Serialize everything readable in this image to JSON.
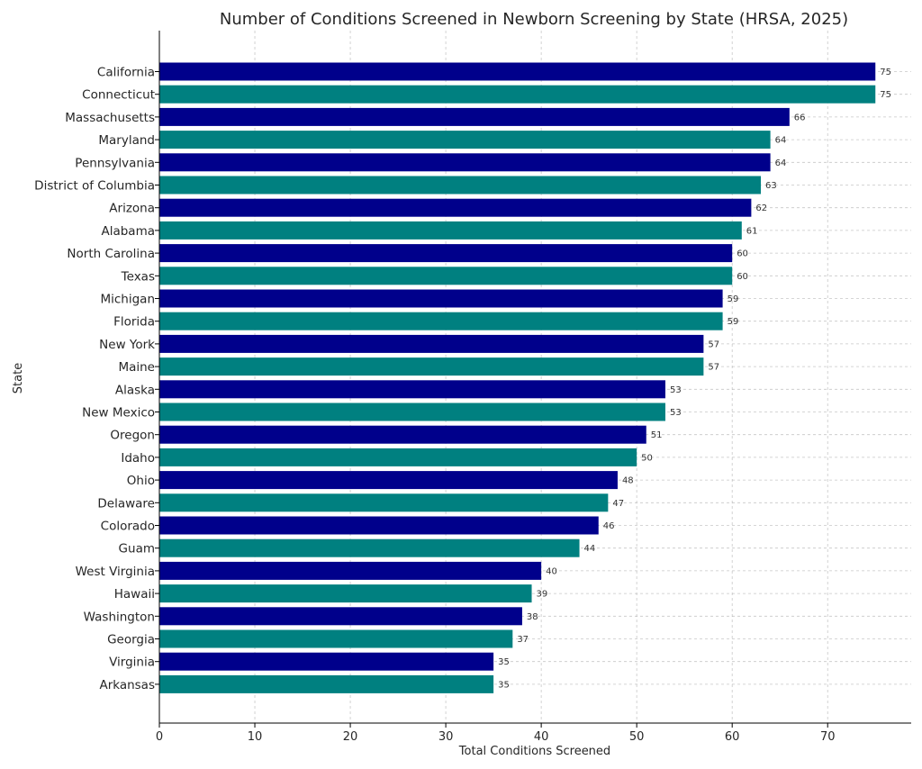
{
  "chart_data": {
    "type": "bar",
    "orientation": "horizontal",
    "title": "Number of Conditions Screened in Newborn Screening by State (HRSA, 2025)",
    "xlabel": "Total Conditions Screened",
    "ylabel": "State",
    "xlim": [
      0,
      78.75
    ],
    "xticks": [
      0,
      10,
      20,
      30,
      40,
      50,
      60,
      70
    ],
    "grid": true,
    "bar_colors": [
      "#00008b",
      "#008080"
    ],
    "categories": [
      "California",
      "Connecticut",
      "Massachusetts",
      "Maryland",
      "Pennsylvania",
      "District of Columbia",
      "Arizona",
      "Alabama",
      "North Carolina",
      "Texas",
      "Michigan",
      "Florida",
      "New York",
      "Maine",
      "Alaska",
      "New Mexico",
      "Oregon",
      "Idaho",
      "Ohio",
      "Delaware",
      "Colorado",
      "Guam",
      "West Virginia",
      "Hawaii",
      "Washington",
      "Georgia",
      "Virginia",
      "Arkansas"
    ],
    "values": [
      75,
      75,
      66,
      64,
      64,
      63,
      62,
      61,
      60,
      60,
      59,
      59,
      57,
      57,
      53,
      53,
      51,
      50,
      48,
      47,
      46,
      44,
      40,
      39,
      38,
      37,
      35,
      35
    ]
  }
}
